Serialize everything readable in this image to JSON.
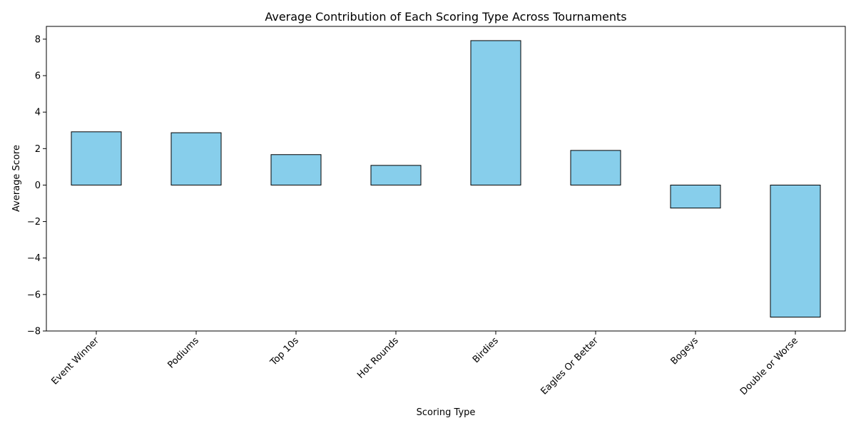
{
  "chart_data": {
    "type": "bar",
    "title": "Average Contribution of Each Scoring Type Across Tournaments",
    "xlabel": "Scoring Type",
    "ylabel": "Average Score",
    "categories": [
      "Event Winner",
      "Podiums",
      "Top 10s",
      "Hot Rounds",
      "Birdies",
      "Eagles Or Better",
      "Bogeys",
      "Double or Worse"
    ],
    "values": [
      2.92,
      2.87,
      1.67,
      1.08,
      7.92,
      1.9,
      -1.26,
      -7.24
    ],
    "ylim": [
      -8,
      8.7
    ],
    "yticks": [
      -8,
      -6,
      -4,
      -2,
      0,
      2,
      4,
      6,
      8
    ],
    "ytick_labels": [
      "−8",
      "−6",
      "−4",
      "−2",
      "0",
      "2",
      "4",
      "6",
      "8"
    ],
    "bar_color": "#87ceeb",
    "edge_color": "#000000",
    "grid": false,
    "legend": "none"
  }
}
